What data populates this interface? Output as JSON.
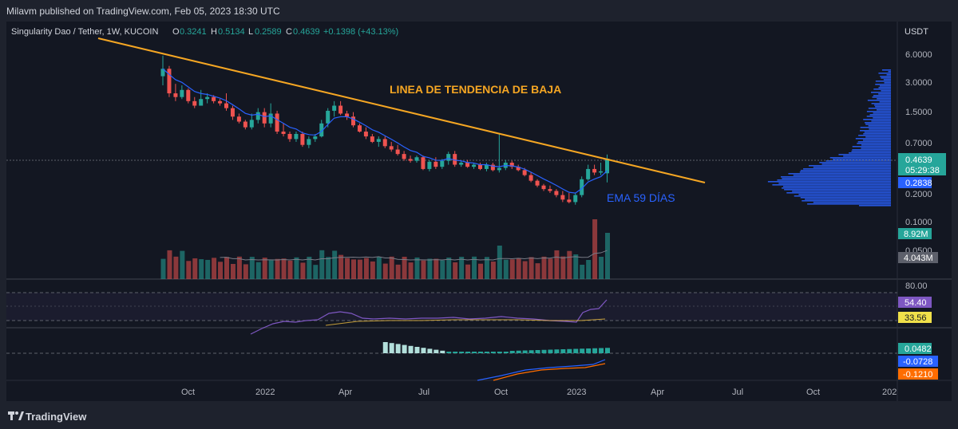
{
  "publish_line": "Milavm published on TradingView.com, Feb 05, 2023 18:30 UTC",
  "legend": {
    "symbol": "Singularity Dao / Tether, 1W, KUCOIN",
    "o_label": "O",
    "o_value": "0.3241",
    "h_label": "H",
    "h_value": "0.5134",
    "l_label": "L",
    "l_value": "0.2589",
    "c_label": "C",
    "c_value": "0.4639",
    "change": "+0.1398 (+43.13%)"
  },
  "annotations": {
    "trend": "LINEA DE TENDENCIA DE BAJA",
    "ema": "EMA 59 DÍAS"
  },
  "price_axis": {
    "currency": "USDT",
    "ticks": [
      "6.0000",
      "3.0000",
      "1.5000",
      "0.7000",
      "0.2000",
      "0.1000",
      "0.0500"
    ],
    "last_price": "0.4639",
    "countdown": "05:29:38",
    "ema_value": "0.2838",
    "volume": "8.92M",
    "volume_ma": "4.043M"
  },
  "rsi": {
    "level": "80.00",
    "value": "54.40",
    "ma": "33.56"
  },
  "macd": {
    "hist": "0.0482",
    "macd": "-0.0728",
    "signal": "-0.1210"
  },
  "time_axis": [
    "Oct",
    "2022",
    "Apr",
    "Jul",
    "Oct",
    "2023",
    "Apr",
    "Jul",
    "Oct",
    "202"
  ],
  "colors": {
    "bg": "#131722",
    "up": "#26a69a",
    "down": "#ef5350",
    "trendline": "#f5a623",
    "ema": "#2962ff",
    "rsi": "#7e57c2",
    "macd_signal": "#ff6d00",
    "profile": "#2962ff"
  },
  "chart_data": {
    "type": "candlestick",
    "timeframe": "1W",
    "y_scale": "log",
    "ohlc": [
      {
        "o": 3.5,
        "h": 5.8,
        "l": 2.8,
        "c": 4.2
      },
      {
        "o": 4.2,
        "h": 4.5,
        "l": 2.1,
        "c": 2.3
      },
      {
        "o": 2.3,
        "h": 2.9,
        "l": 1.9,
        "c": 2.1
      },
      {
        "o": 2.1,
        "h": 2.8,
        "l": 2.0,
        "c": 2.5
      },
      {
        "o": 2.5,
        "h": 2.6,
        "l": 1.8,
        "c": 1.9
      },
      {
        "o": 1.9,
        "h": 2.1,
        "l": 1.6,
        "c": 1.7
      },
      {
        "o": 1.7,
        "h": 2.5,
        "l": 1.7,
        "c": 2.0
      },
      {
        "o": 2.0,
        "h": 2.3,
        "l": 1.8,
        "c": 2.1
      },
      {
        "o": 2.1,
        "h": 2.2,
        "l": 1.8,
        "c": 1.9
      },
      {
        "o": 1.9,
        "h": 2.0,
        "l": 1.7,
        "c": 1.8
      },
      {
        "o": 1.8,
        "h": 2.3,
        "l": 1.5,
        "c": 1.6
      },
      {
        "o": 1.6,
        "h": 1.7,
        "l": 1.2,
        "c": 1.3
      },
      {
        "o": 1.3,
        "h": 1.4,
        "l": 1.1,
        "c": 1.15
      },
      {
        "o": 1.15,
        "h": 1.2,
        "l": 0.95,
        "c": 1.0
      },
      {
        "o": 1.0,
        "h": 1.4,
        "l": 0.95,
        "c": 1.2
      },
      {
        "o": 1.2,
        "h": 1.6,
        "l": 1.1,
        "c": 1.45
      },
      {
        "o": 1.45,
        "h": 1.6,
        "l": 1.0,
        "c": 1.1
      },
      {
        "o": 1.1,
        "h": 1.8,
        "l": 1.0,
        "c": 1.4
      },
      {
        "o": 1.4,
        "h": 1.5,
        "l": 0.85,
        "c": 0.9
      },
      {
        "o": 0.9,
        "h": 1.1,
        "l": 0.8,
        "c": 0.85
      },
      {
        "o": 0.85,
        "h": 0.9,
        "l": 0.7,
        "c": 0.75
      },
      {
        "o": 0.75,
        "h": 0.9,
        "l": 0.7,
        "c": 0.85
      },
      {
        "o": 0.85,
        "h": 0.9,
        "l": 0.62,
        "c": 0.65
      },
      {
        "o": 0.65,
        "h": 0.8,
        "l": 0.6,
        "c": 0.75
      },
      {
        "o": 0.75,
        "h": 0.85,
        "l": 0.7,
        "c": 0.8
      },
      {
        "o": 0.8,
        "h": 1.2,
        "l": 0.78,
        "c": 1.1
      },
      {
        "o": 1.1,
        "h": 1.6,
        "l": 1.0,
        "c": 1.5
      },
      {
        "o": 1.5,
        "h": 1.9,
        "l": 1.3,
        "c": 1.7
      },
      {
        "o": 1.7,
        "h": 1.9,
        "l": 1.35,
        "c": 1.4
      },
      {
        "o": 1.4,
        "h": 1.5,
        "l": 1.2,
        "c": 1.3
      },
      {
        "o": 1.3,
        "h": 1.45,
        "l": 1.0,
        "c": 1.05
      },
      {
        "o": 1.05,
        "h": 1.1,
        "l": 0.88,
        "c": 0.9
      },
      {
        "o": 0.9,
        "h": 1.0,
        "l": 0.75,
        "c": 0.8
      },
      {
        "o": 0.8,
        "h": 0.85,
        "l": 0.68,
        "c": 0.7
      },
      {
        "o": 0.7,
        "h": 0.8,
        "l": 0.62,
        "c": 0.75
      },
      {
        "o": 0.75,
        "h": 0.8,
        "l": 0.6,
        "c": 0.63
      },
      {
        "o": 0.63,
        "h": 0.7,
        "l": 0.55,
        "c": 0.58
      },
      {
        "o": 0.58,
        "h": 0.65,
        "l": 0.5,
        "c": 0.52
      },
      {
        "o": 0.52,
        "h": 0.56,
        "l": 0.44,
        "c": 0.46
      },
      {
        "o": 0.46,
        "h": 0.5,
        "l": 0.42,
        "c": 0.44
      },
      {
        "o": 0.44,
        "h": 0.5,
        "l": 0.42,
        "c": 0.48
      },
      {
        "o": 0.48,
        "h": 0.5,
        "l": 0.35,
        "c": 0.36
      },
      {
        "o": 0.36,
        "h": 0.45,
        "l": 0.34,
        "c": 0.43
      },
      {
        "o": 0.43,
        "h": 0.48,
        "l": 0.36,
        "c": 0.38
      },
      {
        "o": 0.38,
        "h": 0.46,
        "l": 0.36,
        "c": 0.44
      },
      {
        "o": 0.44,
        "h": 0.55,
        "l": 0.4,
        "c": 0.52
      },
      {
        "o": 0.52,
        "h": 0.56,
        "l": 0.38,
        "c": 0.4
      },
      {
        "o": 0.4,
        "h": 0.44,
        "l": 0.38,
        "c": 0.42
      },
      {
        "o": 0.42,
        "h": 0.45,
        "l": 0.37,
        "c": 0.38
      },
      {
        "o": 0.38,
        "h": 0.42,
        "l": 0.36,
        "c": 0.4
      },
      {
        "o": 0.4,
        "h": 0.42,
        "l": 0.35,
        "c": 0.36
      },
      {
        "o": 0.36,
        "h": 0.42,
        "l": 0.34,
        "c": 0.4
      },
      {
        "o": 0.4,
        "h": 0.42,
        "l": 0.34,
        "c": 0.35
      },
      {
        "o": 0.35,
        "h": 0.85,
        "l": 0.33,
        "c": 0.37
      },
      {
        "o": 0.37,
        "h": 0.45,
        "l": 0.35,
        "c": 0.42
      },
      {
        "o": 0.42,
        "h": 0.44,
        "l": 0.36,
        "c": 0.38
      },
      {
        "o": 0.38,
        "h": 0.4,
        "l": 0.34,
        "c": 0.35
      },
      {
        "o": 0.35,
        "h": 0.37,
        "l": 0.3,
        "c": 0.31
      },
      {
        "o": 0.31,
        "h": 0.33,
        "l": 0.26,
        "c": 0.27
      },
      {
        "o": 0.27,
        "h": 0.28,
        "l": 0.23,
        "c": 0.24
      },
      {
        "o": 0.24,
        "h": 0.25,
        "l": 0.21,
        "c": 0.22
      },
      {
        "o": 0.22,
        "h": 0.24,
        "l": 0.2,
        "c": 0.21
      },
      {
        "o": 0.21,
        "h": 0.22,
        "l": 0.18,
        "c": 0.19
      },
      {
        "o": 0.19,
        "h": 0.21,
        "l": 0.16,
        "c": 0.17
      },
      {
        "o": 0.17,
        "h": 0.2,
        "l": 0.155,
        "c": 0.16
      },
      {
        "o": 0.16,
        "h": 0.2,
        "l": 0.15,
        "c": 0.19
      },
      {
        "o": 0.19,
        "h": 0.3,
        "l": 0.18,
        "c": 0.28
      },
      {
        "o": 0.28,
        "h": 0.4,
        "l": 0.27,
        "c": 0.36
      },
      {
        "o": 0.36,
        "h": 0.4,
        "l": 0.31,
        "c": 0.33
      },
      {
        "o": 0.33,
        "h": 0.42,
        "l": 0.31,
        "c": 0.34
      },
      {
        "o": 0.3241,
        "h": 0.5134,
        "l": 0.2589,
        "c": 0.4639
      }
    ],
    "volume_max": 8.92
  }
}
